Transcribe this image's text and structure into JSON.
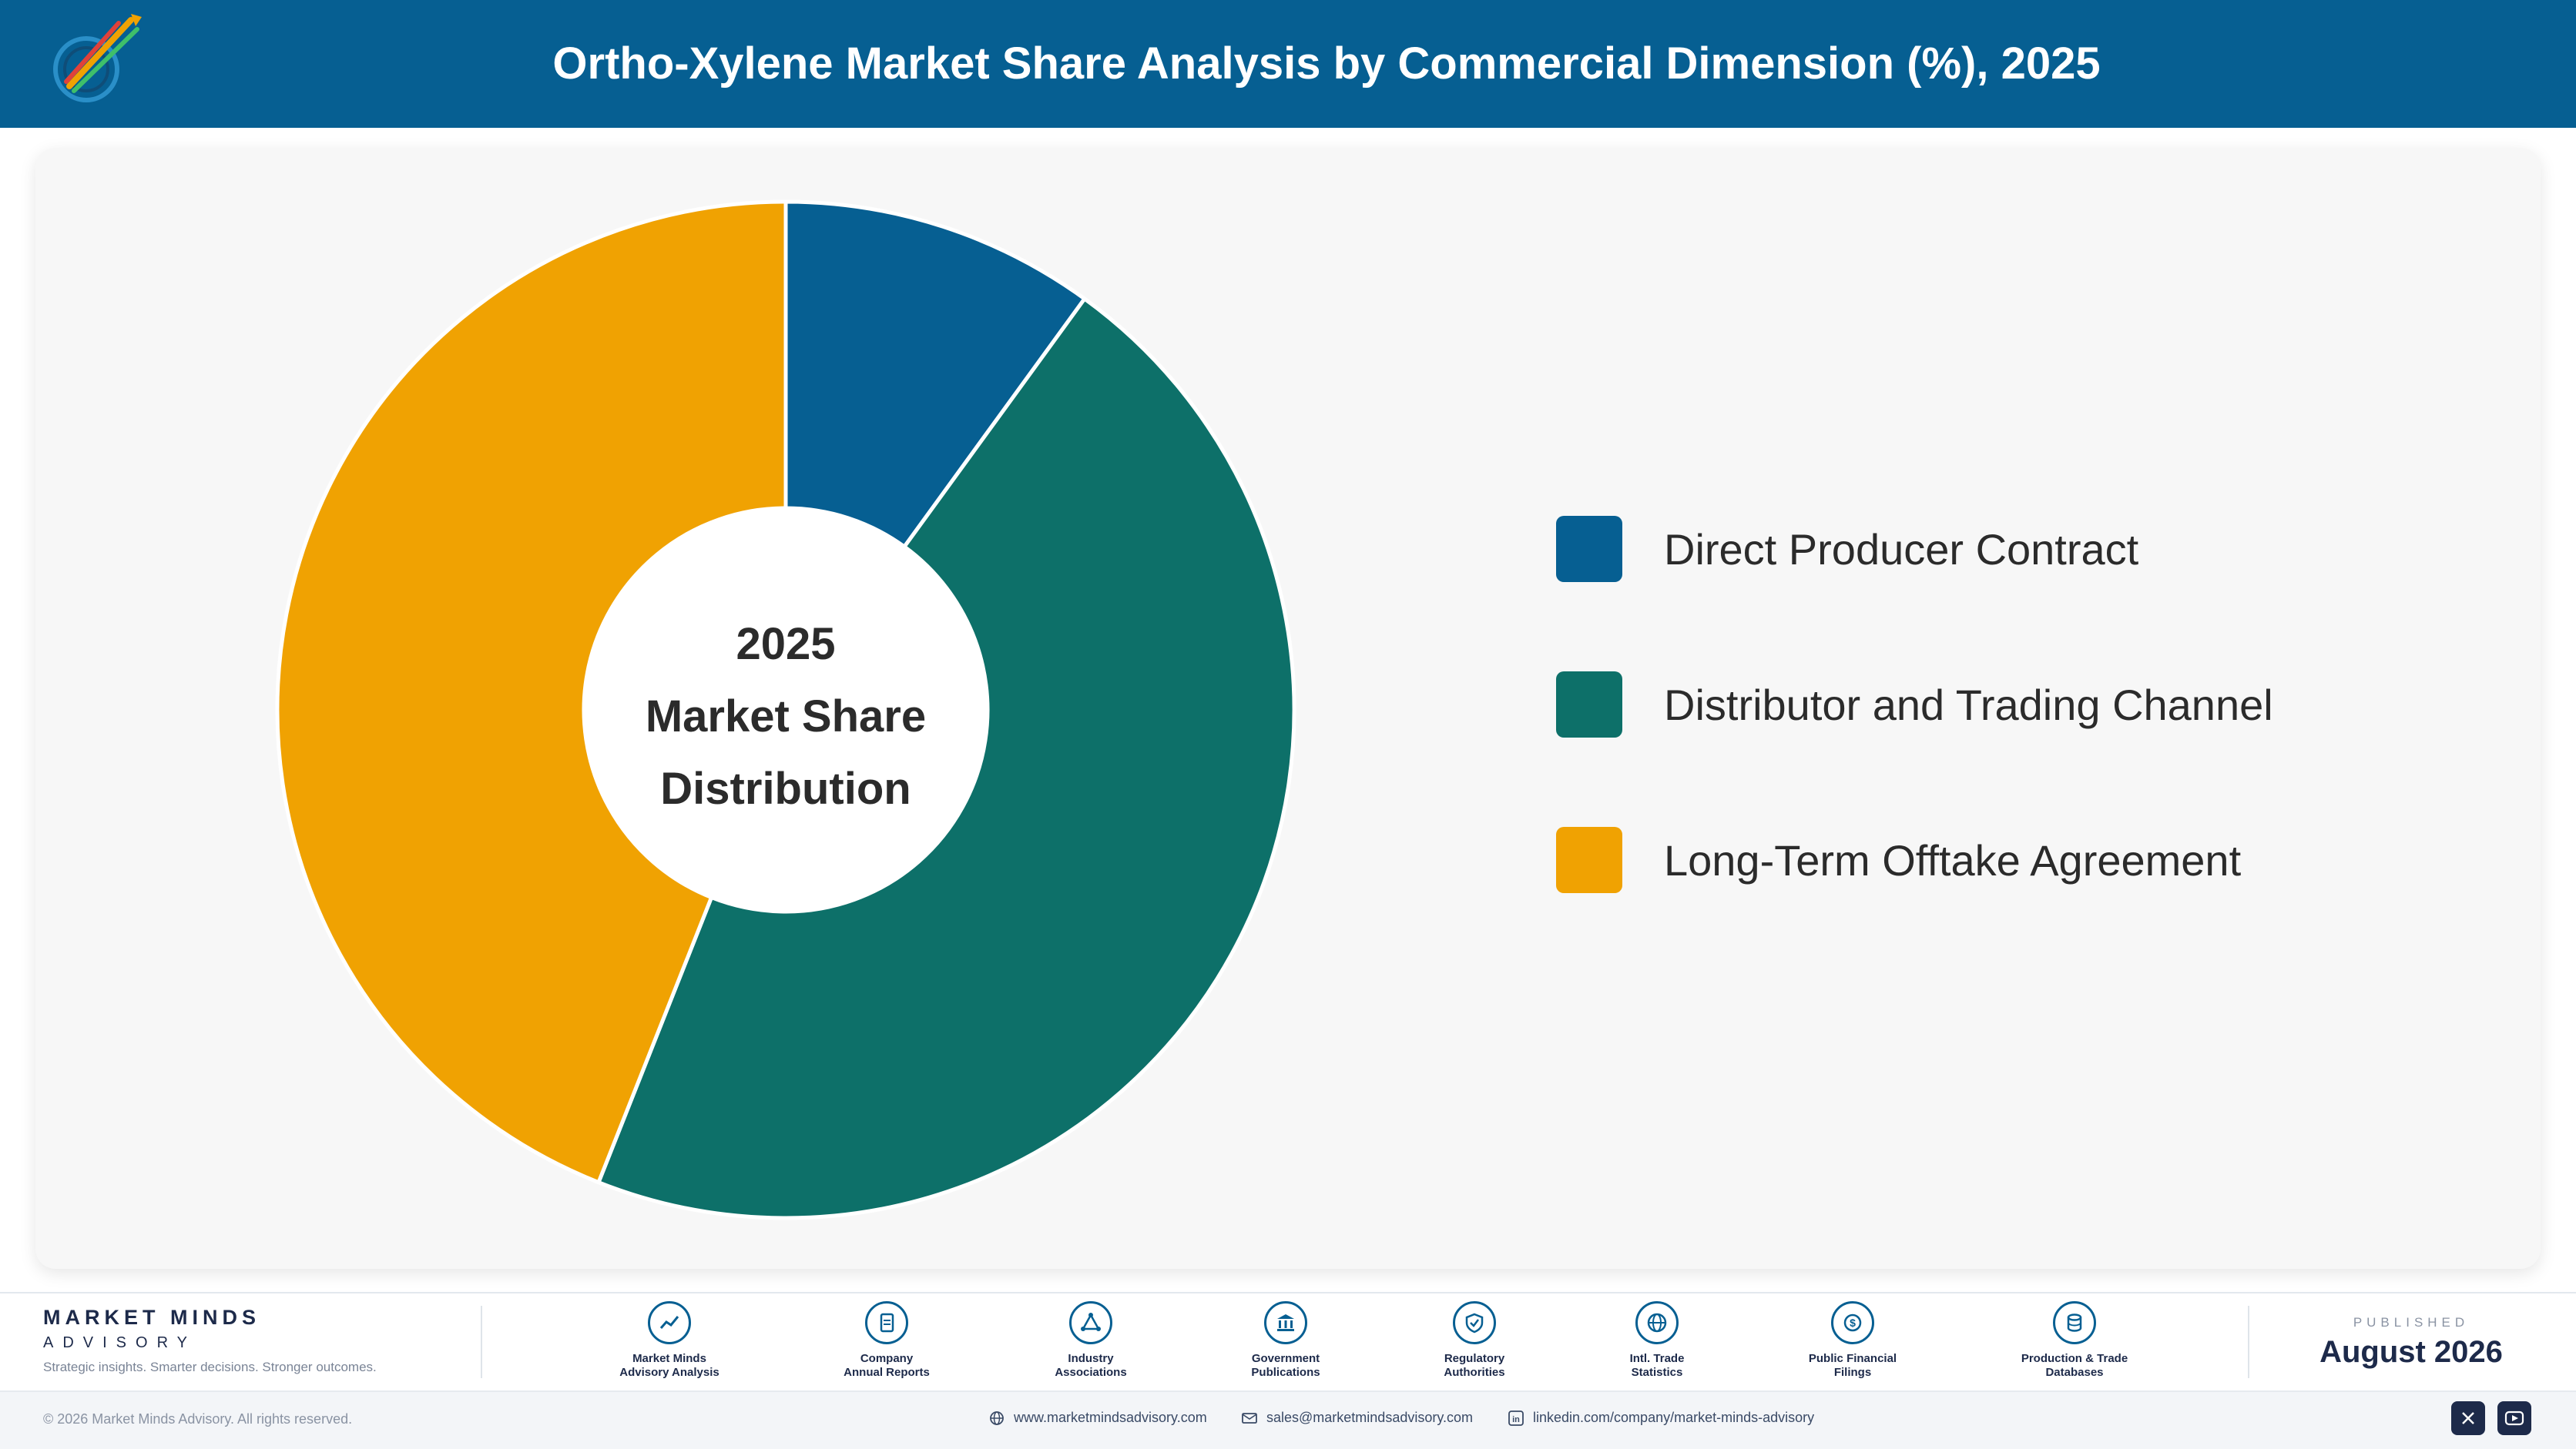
{
  "header": {
    "title": "Ortho-Xylene Market Share Analysis by Commercial Dimension (%), 2025"
  },
  "chart_data": {
    "type": "pie",
    "variant": "donut",
    "title": "Ortho-Xylene Market Share Analysis by Commercial Dimension (%), 2025",
    "categories": [
      "Direct Producer Contract",
      "Distributor and Trading Channel",
      "Long-Term Offtake Agreement"
    ],
    "values": [
      10.0,
      46.0,
      44.0
    ],
    "colors": [
      "#065f92",
      "#0d7069",
      "#f0a202"
    ],
    "center_label": [
      "2025",
      "Market Share",
      "Distribution"
    ],
    "legend_position": "right"
  },
  "footer": {
    "brand_name": "MARKET MINDS",
    "brand_sub": "ADVISORY",
    "brand_tagline": "Strategic insights. Smarter decisions. Stronger outcomes.",
    "sources": [
      {
        "line1": "Market Minds",
        "line2": "Advisory Analysis",
        "icon": "trend-chart-icon"
      },
      {
        "line1": "Company",
        "line2": "Annual Reports",
        "icon": "document-icon"
      },
      {
        "line1": "Industry",
        "line2": "Associations",
        "icon": "network-icon"
      },
      {
        "line1": "Government",
        "line2": "Publications",
        "icon": "government-building-icon"
      },
      {
        "line1": "Regulatory",
        "line2": "Authorities",
        "icon": "shield-check-icon"
      },
      {
        "line1": "Intl. Trade",
        "line2": "Statistics",
        "icon": "globe-icon"
      },
      {
        "line1": "Public Financial",
        "line2": "Filings",
        "icon": "dollar-coin-icon"
      },
      {
        "line1": "Production & Trade",
        "line2": "Databases",
        "icon": "database-icon"
      }
    ],
    "published_label": "PUBLISHED",
    "published_date": "August 2026",
    "copyright": "© 2026 Market Minds Advisory. All rights reserved.",
    "website": "www.marketmindsadvisory.com",
    "email": "sales@marketmindsadvisory.com",
    "linkedin": "linkedin.com/company/market-minds-advisory"
  }
}
